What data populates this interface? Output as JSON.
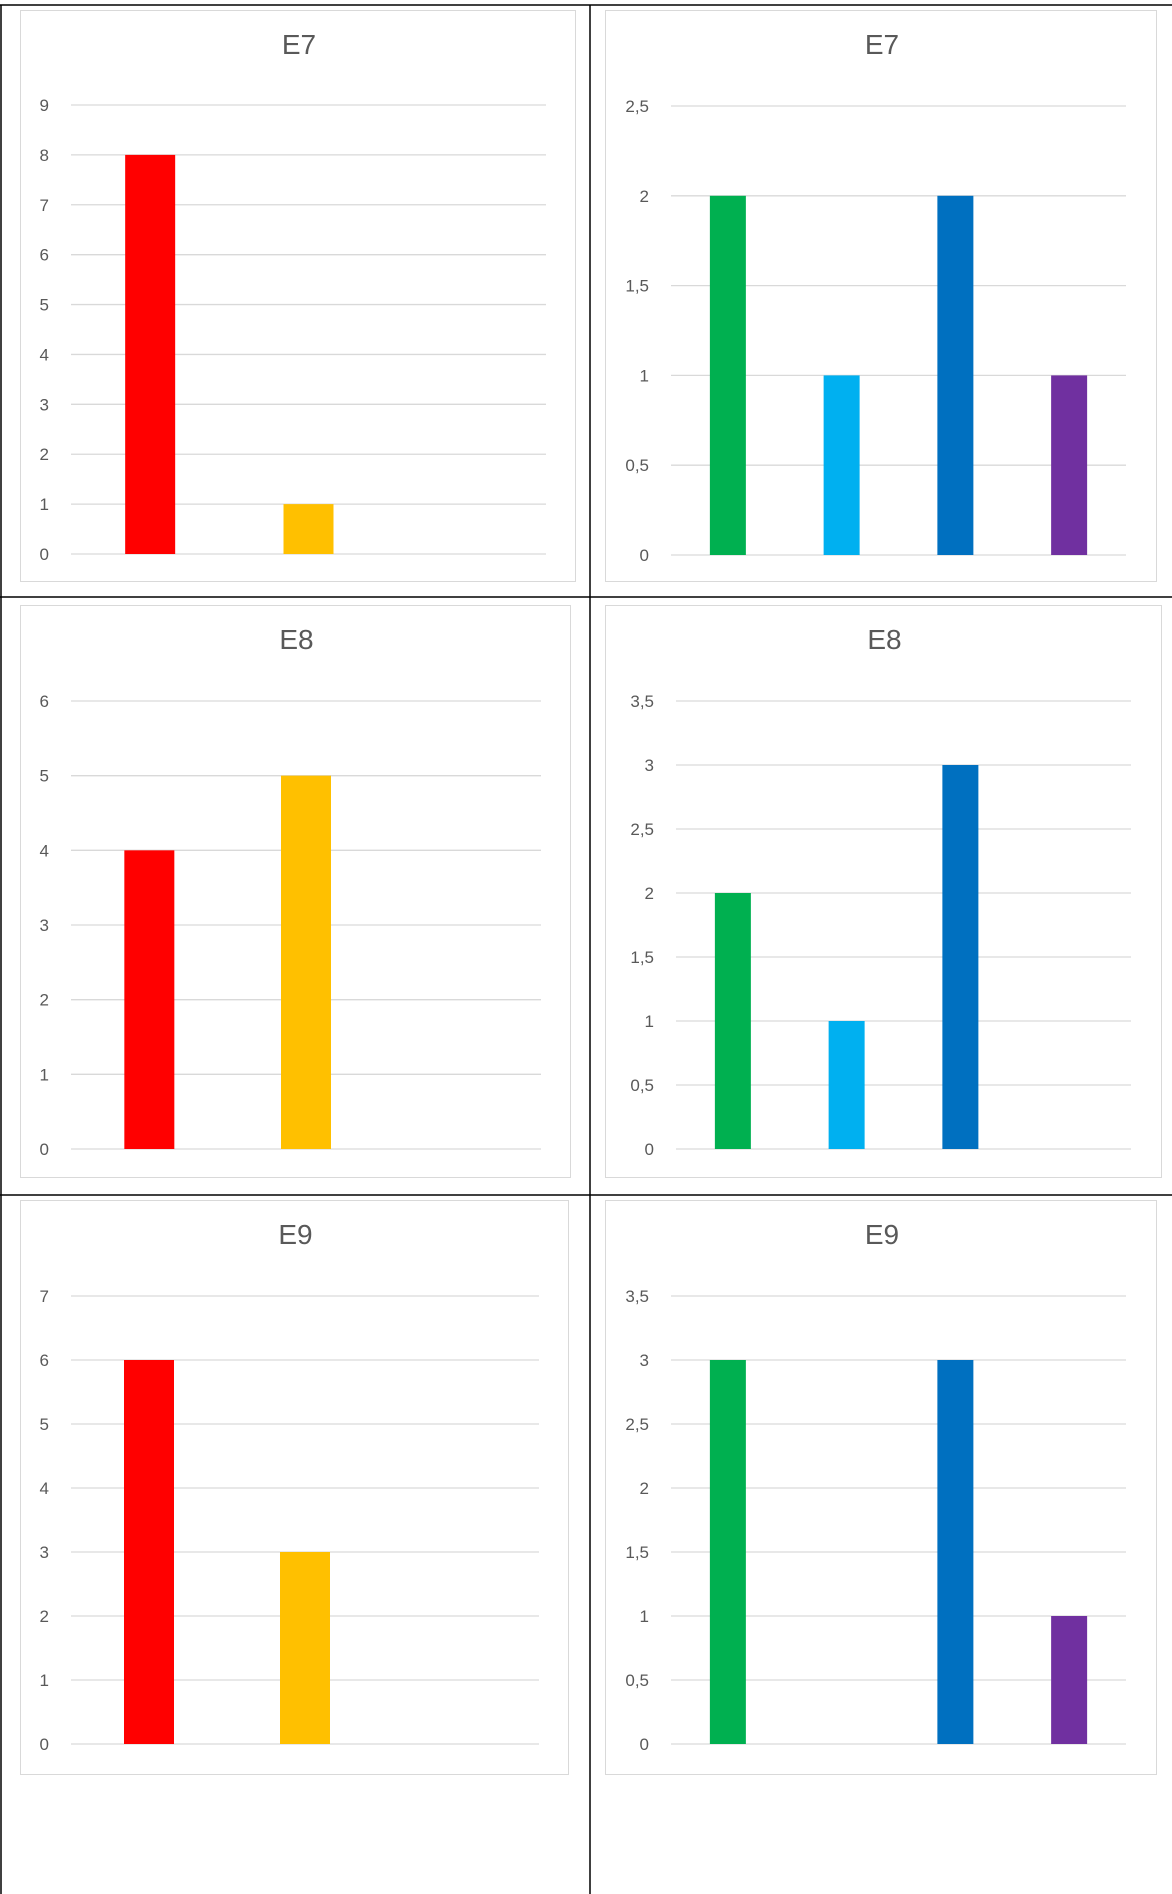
{
  "colors": {
    "red": "#ff0000",
    "yellow": "#ffc000",
    "green": "#00b050",
    "light_blue": "#00b0f0",
    "blue": "#0070c0",
    "purple": "#7030a0",
    "gridline": "#d9d9d9",
    "text": "#595959"
  },
  "chart_data": [
    {
      "type": "bar",
      "title": "E7",
      "xlabel": "",
      "ylabel": "",
      "ylim": [
        0,
        9
      ],
      "ticks": [
        "0",
        "1",
        "2",
        "3",
        "4",
        "5",
        "6",
        "7",
        "8",
        "9"
      ],
      "values": [
        8,
        1
      ],
      "bar_colors": [
        "red",
        "yellow"
      ],
      "grid": true,
      "legend": "none"
    },
    {
      "type": "bar",
      "title": "E7",
      "xlabel": "",
      "ylabel": "",
      "ylim": [
        0,
        2.5
      ],
      "ticks": [
        "0",
        "0,5",
        "1",
        "1,5",
        "2",
        "2,5"
      ],
      "values": [
        2,
        1,
        2,
        1
      ],
      "bar_colors": [
        "green",
        "light_blue",
        "blue",
        "purple"
      ],
      "grid": true,
      "legend": "none"
    },
    {
      "type": "bar",
      "title": "E8",
      "xlabel": "",
      "ylabel": "",
      "ylim": [
        0,
        6
      ],
      "ticks": [
        "0",
        "1",
        "2",
        "3",
        "4",
        "5",
        "6"
      ],
      "values": [
        4,
        5
      ],
      "bar_colors": [
        "red",
        "yellow"
      ],
      "grid": true,
      "legend": "none"
    },
    {
      "type": "bar",
      "title": "E8",
      "xlabel": "",
      "ylabel": "",
      "ylim": [
        0,
        3.5
      ],
      "ticks": [
        "0",
        "0,5",
        "1",
        "1,5",
        "2",
        "2,5",
        "3",
        "3,5"
      ],
      "values": [
        2,
        1,
        3,
        0
      ],
      "bar_colors": [
        "green",
        "light_blue",
        "blue",
        "purple"
      ],
      "grid": true,
      "legend": "none"
    },
    {
      "type": "bar",
      "title": "E9",
      "xlabel": "",
      "ylabel": "",
      "ylim": [
        0,
        7
      ],
      "ticks": [
        "0",
        "1",
        "2",
        "3",
        "4",
        "5",
        "6",
        "7"
      ],
      "values": [
        6,
        3
      ],
      "bar_colors": [
        "red",
        "yellow"
      ],
      "grid": true,
      "legend": "none"
    },
    {
      "type": "bar",
      "title": "E9",
      "xlabel": "",
      "ylabel": "",
      "ylim": [
        0,
        3.5
      ],
      "ticks": [
        "0",
        "0,5",
        "1",
        "1,5",
        "2",
        "2,5",
        "3",
        "3,5"
      ],
      "values": [
        3,
        0,
        3,
        1
      ],
      "bar_colors": [
        "green",
        "light_blue",
        "blue",
        "purple"
      ],
      "grid": true,
      "legend": "none"
    }
  ]
}
